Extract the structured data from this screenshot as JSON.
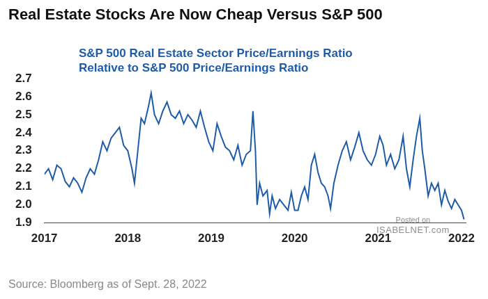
{
  "chart_data": {
    "type": "line",
    "title": "Real Estate Stocks Are Now Cheap Versus S&P 500",
    "subtitle": [
      "S&P 500 Real Estate Sector Price/Earnings Ratio",
      "Relative to S&P 500 Price/Earnings Ratio"
    ],
    "annotations": {
      "source": "Source: Bloomberg as of Sept. 28, 2022",
      "watermark": [
        "Posted on",
        "ISABELNET.com"
      ]
    },
    "x": [
      2017.0,
      2017.05,
      2017.1,
      2017.15,
      2017.2,
      2017.25,
      2017.3,
      2017.35,
      2017.4,
      2017.45,
      2017.5,
      2017.55,
      2017.6,
      2017.65,
      2017.7,
      2017.75,
      2017.8,
      2017.85,
      2017.9,
      2017.95,
      2018.0,
      2018.05,
      2018.08,
      2018.12,
      2018.16,
      2018.2,
      2018.25,
      2018.28,
      2018.32,
      2018.37,
      2018.42,
      2018.47,
      2018.52,
      2018.57,
      2018.62,
      2018.67,
      2018.72,
      2018.77,
      2018.82,
      2018.87,
      2018.92,
      2018.97,
      2019.02,
      2019.07,
      2019.12,
      2019.17,
      2019.22,
      2019.27,
      2019.32,
      2019.37,
      2019.42,
      2019.47,
      2019.5,
      2019.53,
      2019.55,
      2019.58,
      2019.62,
      2019.67,
      2019.7,
      2019.73,
      2019.77,
      2019.82,
      2019.87,
      2019.92,
      2019.96,
      2020.0,
      2020.04,
      2020.08,
      2020.12,
      2020.16,
      2020.2,
      2020.24,
      2020.28,
      2020.32,
      2020.36,
      2020.4,
      2020.43,
      2020.47,
      2020.52,
      2020.57,
      2020.62,
      2020.67,
      2020.72,
      2020.77,
      2020.82,
      2020.87,
      2020.92,
      2020.97,
      2021.02,
      2021.06,
      2021.1,
      2021.15,
      2021.2,
      2021.25,
      2021.3,
      2021.34,
      2021.38,
      2021.42,
      2021.46,
      2021.5,
      2021.53,
      2021.56,
      2021.6,
      2021.64,
      2021.68,
      2021.72,
      2021.76,
      2021.8,
      2021.84,
      2021.88,
      2021.92,
      2021.96,
      2022.0,
      2022.03
    ],
    "values": [
      2.17,
      2.2,
      2.14,
      2.22,
      2.2,
      2.13,
      2.1,
      2.15,
      2.12,
      2.07,
      2.15,
      2.2,
      2.17,
      2.25,
      2.35,
      2.3,
      2.37,
      2.4,
      2.43,
      2.33,
      2.3,
      2.2,
      2.12,
      2.3,
      2.48,
      2.45,
      2.55,
      2.62,
      2.5,
      2.45,
      2.52,
      2.57,
      2.5,
      2.48,
      2.52,
      2.45,
      2.5,
      2.47,
      2.43,
      2.52,
      2.43,
      2.35,
      2.3,
      2.45,
      2.38,
      2.32,
      2.3,
      2.25,
      2.33,
      2.22,
      2.28,
      2.3,
      2.52,
      2.3,
      2.0,
      2.12,
      2.05,
      2.08,
      1.95,
      2.05,
      1.98,
      2.03,
      2.0,
      1.97,
      2.07,
      1.97,
      1.97,
      2.05,
      2.1,
      2.03,
      2.22,
      2.28,
      2.18,
      2.12,
      2.1,
      2.05,
      1.98,
      2.12,
      2.22,
      2.3,
      2.35,
      2.25,
      2.32,
      2.4,
      2.3,
      2.25,
      2.22,
      2.28,
      2.38,
      2.33,
      2.22,
      2.28,
      2.2,
      2.25,
      2.38,
      2.2,
      2.1,
      2.25,
      2.38,
      2.48,
      2.3,
      2.2,
      2.05,
      2.12,
      2.08,
      2.12,
      2.0,
      2.08,
      2.02,
      1.98,
      2.03,
      2.0,
      1.97,
      1.92
    ],
    "color": "#1f5ca8",
    "xlim": [
      2017,
      2022.05
    ],
    "xticks": [
      2017,
      2018,
      2019,
      2020,
      2021,
      2022
    ],
    "ylim": [
      1.9,
      2.7
    ],
    "yticks": [
      1.9,
      {
        "value": 2,
        "label": "2.0"
      },
      2.1,
      2.2,
      2.3,
      2.4,
      2.5,
      2.6,
      2.7
    ],
    "grid": false
  }
}
